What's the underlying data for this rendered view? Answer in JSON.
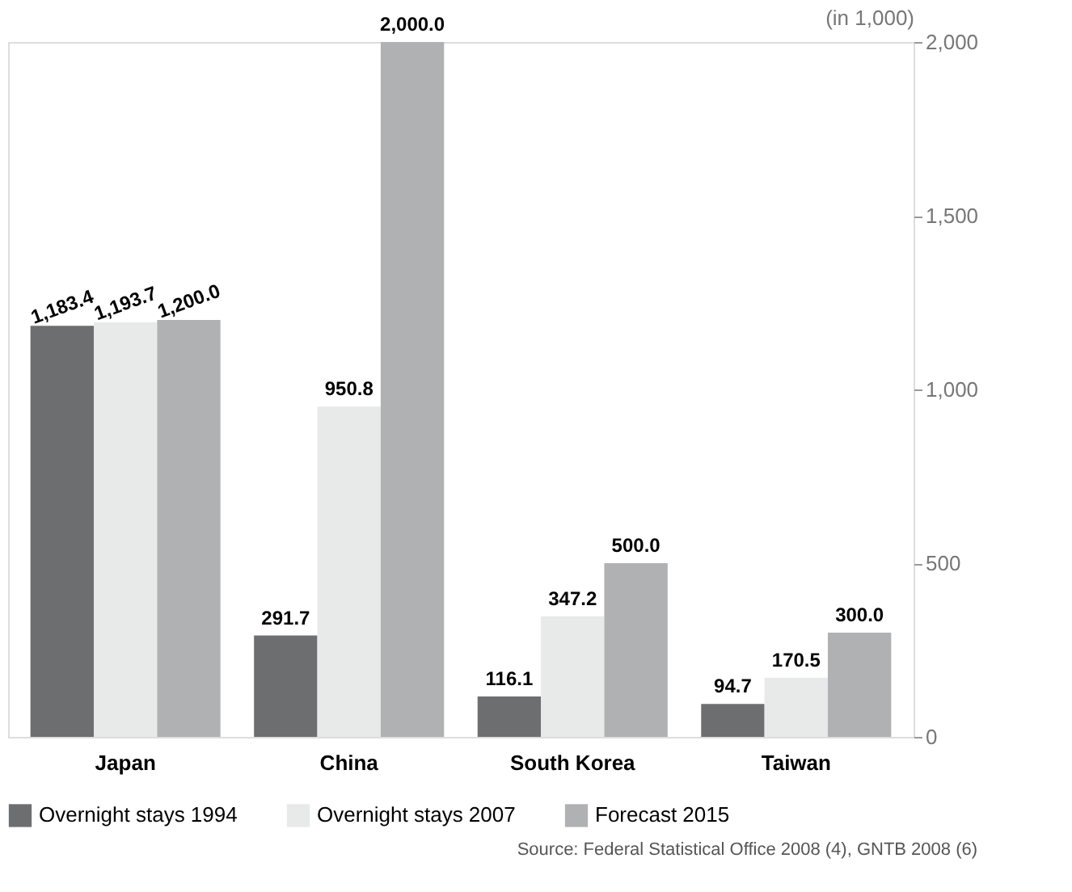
{
  "chart_data": {
    "type": "bar",
    "ylabel": "(in 1,000)",
    "categories": [
      "Japan",
      "China",
      "South Korea",
      "Taiwan"
    ],
    "series": [
      {
        "name": "Overnight stays 1994",
        "color": "#6d6e70",
        "values": [
          1183.4,
          291.7,
          116.1,
          94.7
        ],
        "value_labels": [
          "1,183.4",
          "291.7",
          "116.1",
          "94.7"
        ]
      },
      {
        "name": "Overnight stays 2007",
        "color": "#e8e9e9",
        "values": [
          1193.7,
          950.8,
          347.2,
          170.5
        ],
        "value_labels": [
          "1,193.7",
          "950.8",
          "347.2",
          "170.5"
        ]
      },
      {
        "name": "Forecast 2015",
        "color": "#b0b1b3",
        "values": [
          1200.0,
          2000.0,
          500.0,
          300.0
        ],
        "value_labels": [
          "1,200.0",
          "2,000.0",
          "500.0",
          "300.0"
        ]
      }
    ],
    "ylim": [
      0,
      2000
    ],
    "yticks": [
      0,
      500,
      {
        "value": 1000,
        "label": "1,000"
      },
      {
        "value": 1500,
        "label": "1,500"
      },
      {
        "value": 2000,
        "label": "2,000"
      }
    ],
    "grid": false,
    "legend": "bottom",
    "annotations": [
      "Source: Federal Statistical Office 2008 (4), GNTB 2008 (6)"
    ]
  }
}
